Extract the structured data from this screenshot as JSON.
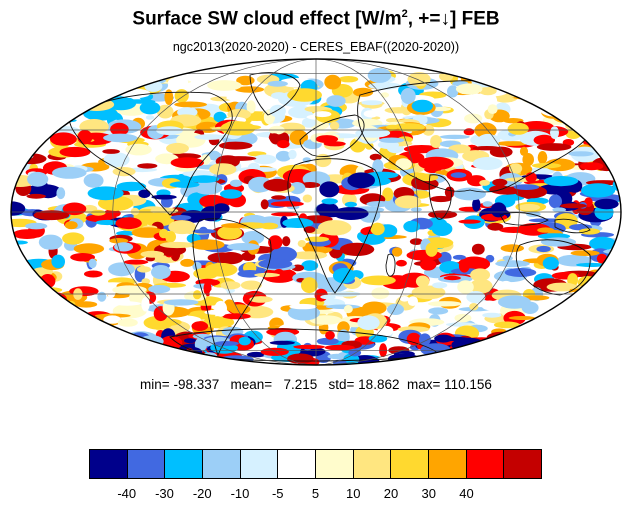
{
  "title": {
    "main": "Surface SW cloud effect [W/m",
    "superscript": "2",
    "tail": ", +=↓]  FEB"
  },
  "subtitle": "ngc2013(2020-2020) - CERES_EBAF((2020-2020))",
  "stats": {
    "min_label": "min=",
    "min": "-98.337",
    "mean_label": "mean=",
    "mean": "7.215",
    "std_label": "std=",
    "std": "18.862",
    "max_label": "max=",
    "max": "110.156"
  },
  "colorbar": {
    "colors": [
      "#00008b",
      "#4169e1",
      "#00bfff",
      "#9ccff7",
      "#d6f1ff",
      "#ffffff",
      "#fffccc",
      "#ffe680",
      "#ffd92f",
      "#ffa500",
      "#ff0000",
      "#c40000"
    ],
    "labels": [
      "-40",
      "-30",
      "-20",
      "-10",
      "-5",
      "5",
      "10",
      "20",
      "30",
      "40"
    ]
  }
}
